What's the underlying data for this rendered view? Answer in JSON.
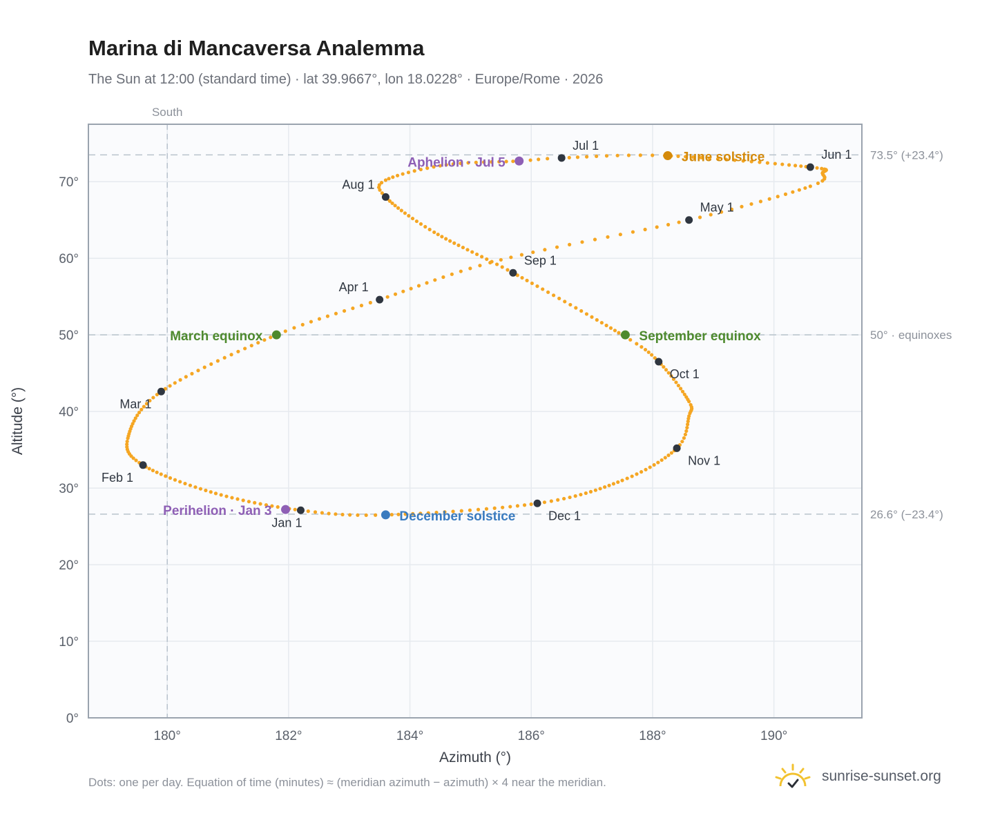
{
  "header": {
    "title": "Marina di Mancaversa Analemma",
    "subtitle": "The Sun at 12:00 (standard time) · lat 39.9667°, lon 18.0228° · Europe/Rome · 2026"
  },
  "footer": {
    "note": "Dots: one per day. Equation of time (minutes) ≈ (meridian azimuth − azimuth) × 4 near the meridian.",
    "brand": "sunrise-sunset.org"
  },
  "colors": {
    "curve": "#f5a623",
    "month_marker": "#2f3640",
    "solstice_june": "#d48a0a",
    "solstice_december": "#3a7bbf",
    "equinox": "#4e8a2e",
    "apsis": "#8e5fb5",
    "reference_line": "#b8c2cc",
    "grid": "#e6eaef",
    "plot_bg": "#fafbfd",
    "frame": "#9aa3ae",
    "brand_sun": "#f2c230"
  },
  "chart_data": {
    "type": "scatter",
    "xlabel": "Azimuth (°)",
    "ylabel": "Altitude (°)",
    "xlim": [
      178.7,
      191.45
    ],
    "ylim": [
      0,
      77.5
    ],
    "xticks": [
      180,
      182,
      184,
      186,
      188,
      190
    ],
    "yticks": [
      0,
      10,
      20,
      30,
      40,
      50,
      60,
      70
    ],
    "tick_suffix": "°",
    "grid": true,
    "reference_lines": {
      "vertical": [
        {
          "x": 180,
          "label": "South"
        }
      ],
      "horizontal": [
        {
          "y": 73.5,
          "label": "73.5° (+23.4°)"
        },
        {
          "y": 50.0,
          "label": "50° · equinoxes"
        },
        {
          "y": 26.6,
          "label": "26.6° (−23.4°)"
        }
      ]
    },
    "daily_path": {
      "description_points": [
        [
          "Jan 1",
          182.2,
          27.1
        ],
        [
          "Jan 16",
          180.8,
          29.3
        ],
        [
          "Feb 1",
          179.6,
          33.0
        ],
        [
          "Feb 12",
          179.35,
          36.5
        ],
        [
          "Mar 1",
          179.9,
          42.6
        ],
        [
          "Mar 20",
          181.8,
          50.0
        ],
        [
          "Apr 1",
          183.5,
          54.6
        ],
        [
          "Apr 15",
          185.5,
          59.8
        ],
        [
          "May 1",
          188.6,
          65.0
        ],
        [
          "May 15",
          190.6,
          69.4
        ],
        [
          "May 22",
          190.8,
          71.1
        ],
        [
          "Jun 1",
          190.6,
          71.9
        ],
        [
          "Jun 21",
          188.2,
          73.4
        ],
        [
          "Jul 1",
          186.5,
          73.1
        ],
        [
          "Jul 5",
          185.8,
          72.7
        ],
        [
          "Jul 15",
          184.6,
          72.2
        ],
        [
          "Jul 26",
          183.6,
          70.2
        ],
        [
          "Aug 1",
          183.6,
          68.0
        ],
        [
          "Aug 15",
          184.4,
          63.4
        ],
        [
          "Sep 1",
          185.7,
          58.1
        ],
        [
          "Sep 23",
          187.5,
          50.0
        ],
        [
          "Oct 1",
          188.1,
          46.5
        ],
        [
          "Oct 15",
          188.6,
          41.3
        ],
        [
          "Oct 22",
          188.6,
          39.4
        ],
        [
          "Nov 1",
          188.4,
          35.2
        ],
        [
          "Nov 15",
          187.5,
          31.0
        ],
        [
          "Dec 1",
          186.1,
          28.0
        ],
        [
          "Dec 21",
          183.6,
          26.5
        ],
        [
          "Jan 1",
          182.2,
          27.1
        ]
      ],
      "days_per_year": 365
    },
    "month_markers": [
      {
        "label": "Jan 1",
        "x": 182.2,
        "y": 27.1,
        "anchor": "below"
      },
      {
        "label": "Feb 1",
        "x": 179.6,
        "y": 33.0,
        "anchor": "below-left"
      },
      {
        "label": "Mar 1",
        "x": 179.9,
        "y": 42.6,
        "anchor": "below-left"
      },
      {
        "label": "Apr 1",
        "x": 183.5,
        "y": 54.6,
        "anchor": "above-left"
      },
      {
        "label": "May 1",
        "x": 188.6,
        "y": 65.0,
        "anchor": "above-right"
      },
      {
        "label": "Jun 1",
        "x": 190.6,
        "y": 71.9,
        "anchor": "above-right"
      },
      {
        "label": "Jul 1",
        "x": 186.5,
        "y": 73.1,
        "anchor": "above-right"
      },
      {
        "label": "Aug 1",
        "x": 183.6,
        "y": 68.0,
        "anchor": "above-left"
      },
      {
        "label": "Sep 1",
        "x": 185.7,
        "y": 58.1,
        "anchor": "above-right"
      },
      {
        "label": "Oct 1",
        "x": 188.1,
        "y": 46.5,
        "anchor": "below-right"
      },
      {
        "label": "Nov 1",
        "x": 188.4,
        "y": 35.2,
        "anchor": "below-right"
      },
      {
        "label": "Dec 1",
        "x": 186.1,
        "y": 28.0,
        "anchor": "below-right"
      }
    ],
    "events": [
      {
        "label": "June solstice",
        "x": 188.25,
        "y": 73.4,
        "color_key": "solstice_june",
        "anchor": "right"
      },
      {
        "label": "December solstice",
        "x": 183.6,
        "y": 26.5,
        "color_key": "solstice_december",
        "anchor": "right"
      },
      {
        "label": "March equinox",
        "x": 181.8,
        "y": 50.0,
        "color_key": "equinox",
        "anchor": "left"
      },
      {
        "label": "September equinox",
        "x": 187.55,
        "y": 50.0,
        "color_key": "equinox",
        "anchor": "right"
      },
      {
        "label": "Aphelion · Jul 5",
        "x": 185.8,
        "y": 72.7,
        "color_key": "apsis",
        "anchor": "left"
      },
      {
        "label": "Perihelion · Jan 3",
        "x": 181.95,
        "y": 27.2,
        "color_key": "apsis",
        "anchor": "left"
      }
    ]
  }
}
